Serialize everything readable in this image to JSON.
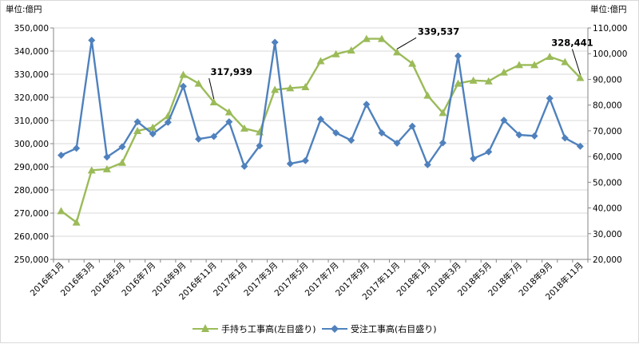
{
  "chart_data": {
    "type": "line",
    "left_unit_label": "単位:億円",
    "right_unit_label": "単位:億円",
    "left_ylim": [
      250000,
      350000
    ],
    "left_ticks": [
      "250,000",
      "260,000",
      "270,000",
      "280,000",
      "290,000",
      "300,000",
      "310,000",
      "320,000",
      "330,000",
      "340,000",
      "350,000"
    ],
    "right_ylim": [
      20000,
      110000
    ],
    "right_ticks": [
      "20,000",
      "30,000",
      "40,000",
      "50,000",
      "60,000",
      "70,000",
      "80,000",
      "90,000",
      "100,000",
      "110,000"
    ],
    "x": [
      "2016年1月",
      "2016年2月",
      "2016年3月",
      "2016年4月",
      "2016年5月",
      "2016年6月",
      "2016年7月",
      "2016年8月",
      "2016年9月",
      "2016年10月",
      "2016年11月",
      "2016年12月",
      "2017年1月",
      "2017年2月",
      "2017年3月",
      "2017年4月",
      "2017年5月",
      "2017年6月",
      "2017年7月",
      "2017年8月",
      "2017年9月",
      "2017年10月",
      "2017年11月",
      "2017年12月",
      "2018年1月",
      "2018年2月",
      "2018年3月",
      "2018年4月",
      "2018年5月",
      "2018年6月",
      "2018年7月",
      "2018年8月",
      "2018年9月",
      "2018年10月",
      "2018年11月"
    ],
    "x_tick_labels": [
      "2016年1月",
      "2016年3月",
      "2016年5月",
      "2016年7月",
      "2016年9月",
      "2016年11月",
      "2017年1月",
      "2017年3月",
      "2017年5月",
      "2017年7月",
      "2017年9月",
      "2017年11月",
      "2018年1月",
      "2018年3月",
      "2018年5月",
      "2018年7月",
      "2018年9月",
      "2018年11月"
    ],
    "series": [
      {
        "name": "手持ち工事高(左目盛り)",
        "axis": "left",
        "color": "#9bbb59",
        "marker": "triangle",
        "values": [
          270900,
          266000,
          288500,
          289000,
          291800,
          305500,
          307000,
          312000,
          329800,
          326000,
          317939,
          313600,
          306600,
          305000,
          323300,
          324000,
          324500,
          335700,
          338700,
          340300,
          345300,
          345300,
          339537,
          334600,
          320800,
          313300,
          326000,
          327300,
          327000,
          330800,
          334000,
          334000,
          337600,
          335300,
          328441
        ]
      },
      {
        "name": "受注工事高(右目盛り)",
        "axis": "right",
        "color": "#4f81bd",
        "marker": "diamond",
        "values": [
          60500,
          63200,
          105200,
          59800,
          63800,
          73500,
          68800,
          73300,
          87300,
          66800,
          67800,
          73500,
          56200,
          64200,
          104400,
          57200,
          58400,
          74500,
          69200,
          66300,
          80300,
          69200,
          65200,
          71800,
          56800,
          65300,
          99100,
          59200,
          61800,
          74100,
          68400,
          68000,
          82600,
          67200,
          64000
        ]
      }
    ],
    "annotations": [
      {
        "text": "317,939",
        "series": 0,
        "index": 10
      },
      {
        "text": "339,537",
        "series": 0,
        "index": 22
      },
      {
        "text": "328,441",
        "series": 0,
        "index": 34
      }
    ],
    "grid": "horizontal",
    "legend_position": "bottom"
  }
}
